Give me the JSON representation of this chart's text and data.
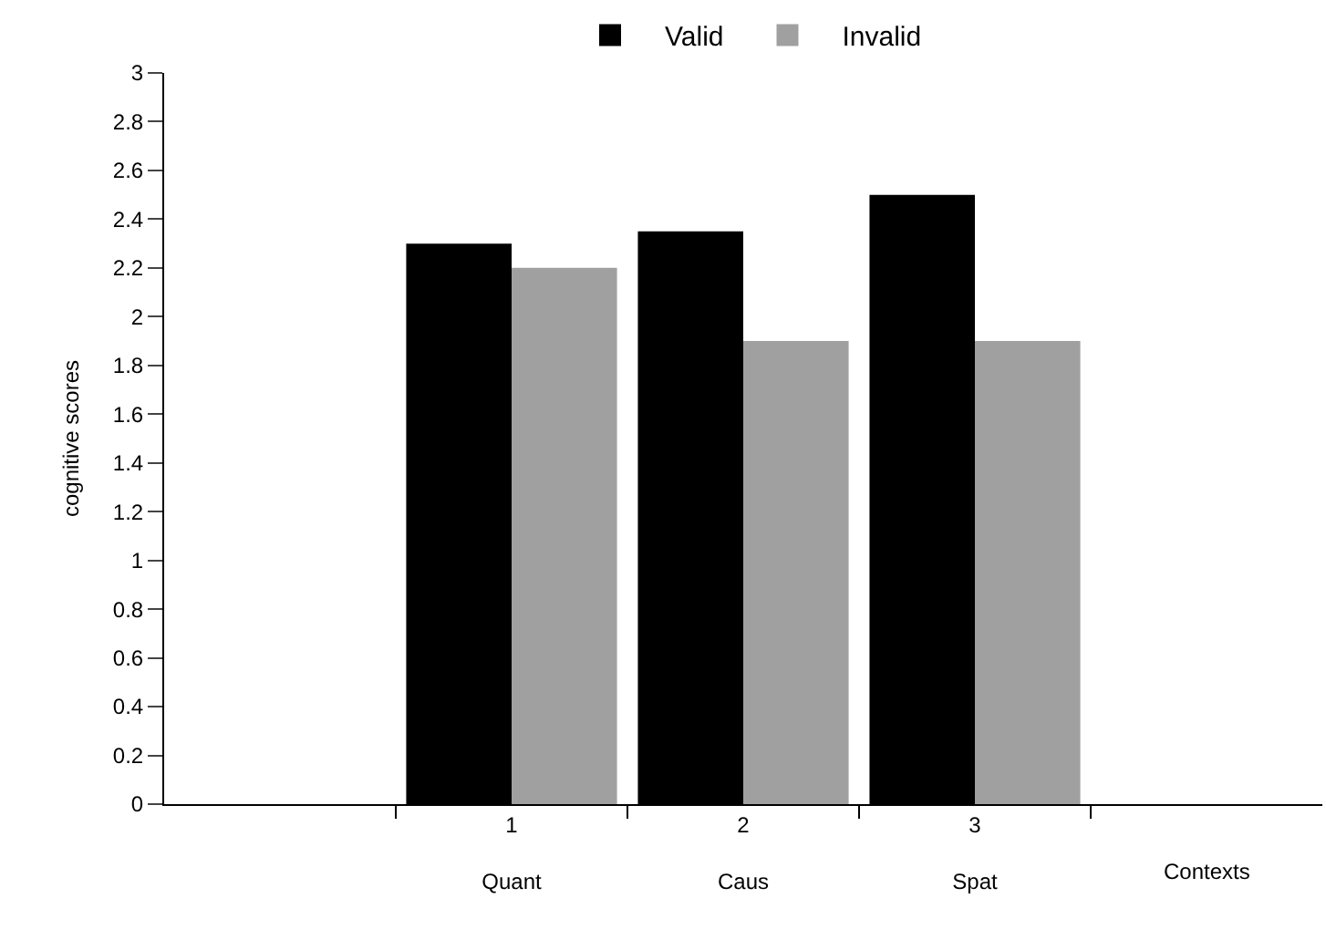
{
  "chart_data": {
    "type": "bar",
    "categories": [
      null,
      "1\n\nQuant",
      "2\n\nCaus",
      "3\n\nSpat",
      null
    ],
    "xlabel": "Contexts",
    "ylabel": "cognitive scores",
    "series": [
      {
        "name": "Valid",
        "color": "#000000",
        "values": [
          null,
          2.3,
          2.35,
          2.5,
          null
        ]
      },
      {
        "name": "Invalid",
        "color": "#a0a0a0",
        "values": [
          null,
          2.2,
          1.9,
          1.9,
          null
        ]
      }
    ],
    "ylim": [
      0,
      3
    ],
    "yticks": [
      0,
      0.2,
      0.4,
      0.6,
      0.8,
      1,
      1.2,
      1.4,
      1.6,
      1.8,
      2,
      2.2,
      2.4,
      2.6,
      2.8,
      3
    ],
    "legend": "top"
  }
}
